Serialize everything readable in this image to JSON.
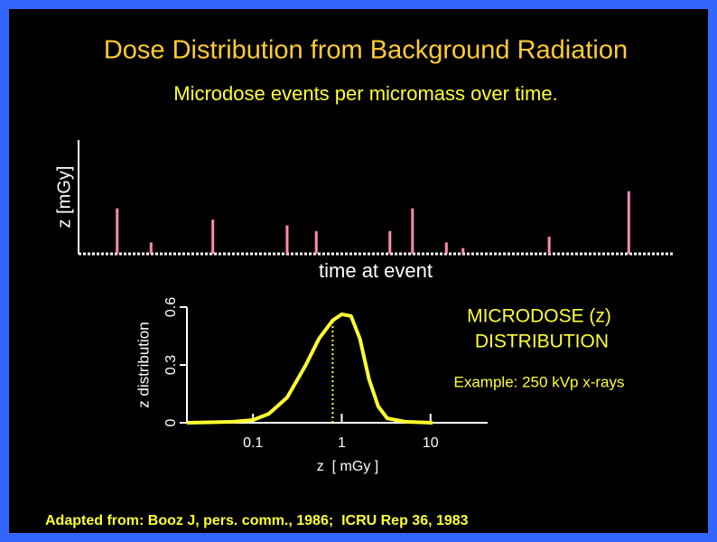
{
  "title": "Dose Distribution from Background Radiation",
  "subtitle": "Microdose events per micromass over time.",
  "footer": "Adapted from: Booz J, pers. comm., 1986;  ICRU Rep 36, 1983",
  "chart_data": [
    {
      "type": "bar",
      "ylabel": "z [mGy]",
      "xlabel": "time at event",
      "color": "#ff88bb",
      "x": [
        6.5,
        12.2,
        22.6,
        35.1,
        40.0,
        52.4,
        56.2,
        61.9,
        64.7,
        79.2,
        92.6
      ],
      "values": [
        40,
        10,
        30,
        25,
        20,
        20,
        40,
        10,
        5,
        15,
        55
      ],
      "xlim": [
        0,
        100
      ],
      "ylim": [
        0,
        100
      ]
    },
    {
      "type": "line",
      "ylabel": "z distribution",
      "xlabel": "z  [ mGy ]",
      "color": "#ffff33",
      "log_x": true,
      "x": [
        0.018,
        0.059,
        0.1,
        0.151,
        0.242,
        0.389,
        0.554,
        0.79,
        1,
        1.27,
        1.6,
        2.03,
        2.57,
        3.26,
        5.2,
        10.6
      ],
      "values": [
        0,
        0.005,
        0.014,
        0.047,
        0.131,
        0.296,
        0.437,
        0.531,
        0.563,
        0.554,
        0.437,
        0.225,
        0.085,
        0.023,
        0.005,
        0
      ],
      "marker_x": 0.79,
      "xlim": [
        0.018,
        44
      ],
      "ylim": [
        0,
        0.6
      ],
      "xticks": [
        0.1,
        1,
        10
      ],
      "yticks": [
        0,
        0.3,
        0.6
      ],
      "annotations": [
        "MICRODOSE (z)",
        " DISTRIBUTION",
        "Example: 250 kVp x-rays"
      ]
    }
  ]
}
